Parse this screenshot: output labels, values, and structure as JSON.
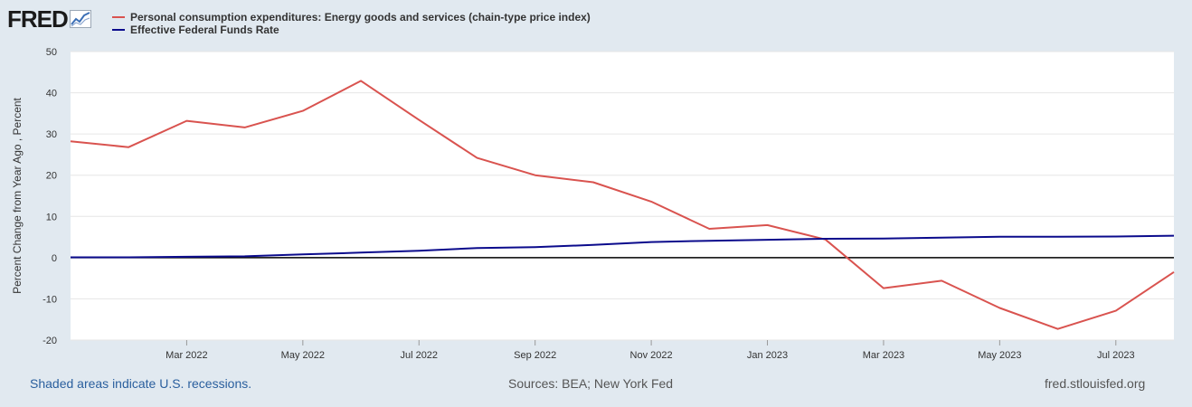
{
  "logo": {
    "text": "FRED"
  },
  "footer": {
    "recession_note": "Shaded areas indicate U.S. recessions.",
    "sources": "Sources: BEA; New York Fed",
    "site": "fred.stlouisfed.org"
  },
  "chart_data": {
    "type": "line",
    "ylabel": "Percent Change from Year Ago , Percent",
    "ylim": [
      -20,
      50
    ],
    "yticks": [
      50,
      40,
      30,
      20,
      10,
      0,
      -10,
      -20
    ],
    "x_start": "2022-01",
    "x_end": "2023-08",
    "xticks": [
      {
        "label": "Mar 2022",
        "month_index": 2
      },
      {
        "label": "May 2022",
        "month_index": 4
      },
      {
        "label": "Jul 2022",
        "month_index": 6
      },
      {
        "label": "Sep 2022",
        "month_index": 8
      },
      {
        "label": "Nov 2022",
        "month_index": 10
      },
      {
        "label": "Jan 2023",
        "month_index": 12
      },
      {
        "label": "Mar 2023",
        "month_index": 14
      },
      {
        "label": "May 2023",
        "month_index": 16
      },
      {
        "label": "Jul 2023",
        "month_index": 18
      }
    ],
    "x": [
      "2022-01",
      "2022-02",
      "2022-03",
      "2022-04",
      "2022-05",
      "2022-06",
      "2022-07",
      "2022-08",
      "2022-09",
      "2022-10",
      "2022-11",
      "2022-12",
      "2023-01",
      "2023-02",
      "2023-03",
      "2023-04",
      "2023-05",
      "2023-06",
      "2023-07",
      "2023-08"
    ],
    "series": [
      {
        "name": "Personal consumption expenditures: Energy goods and services (chain-type price index)",
        "color": "#d9534f",
        "values": [
          28.2,
          26.8,
          33.2,
          31.6,
          35.6,
          42.9,
          33.4,
          24.2,
          20.0,
          18.3,
          13.6,
          7.0,
          7.9,
          4.4,
          -7.4,
          -5.6,
          -12.2,
          -17.3,
          -12.9,
          -3.5
        ]
      },
      {
        "name": "Effective Federal Funds Rate",
        "color": "#0b0b8c",
        "values": [
          0.08,
          0.08,
          0.2,
          0.33,
          0.77,
          1.21,
          1.68,
          2.33,
          2.56,
          3.08,
          3.78,
          4.1,
          4.33,
          4.57,
          4.65,
          4.83,
          5.06,
          5.08,
          5.12,
          5.33
        ]
      }
    ]
  }
}
